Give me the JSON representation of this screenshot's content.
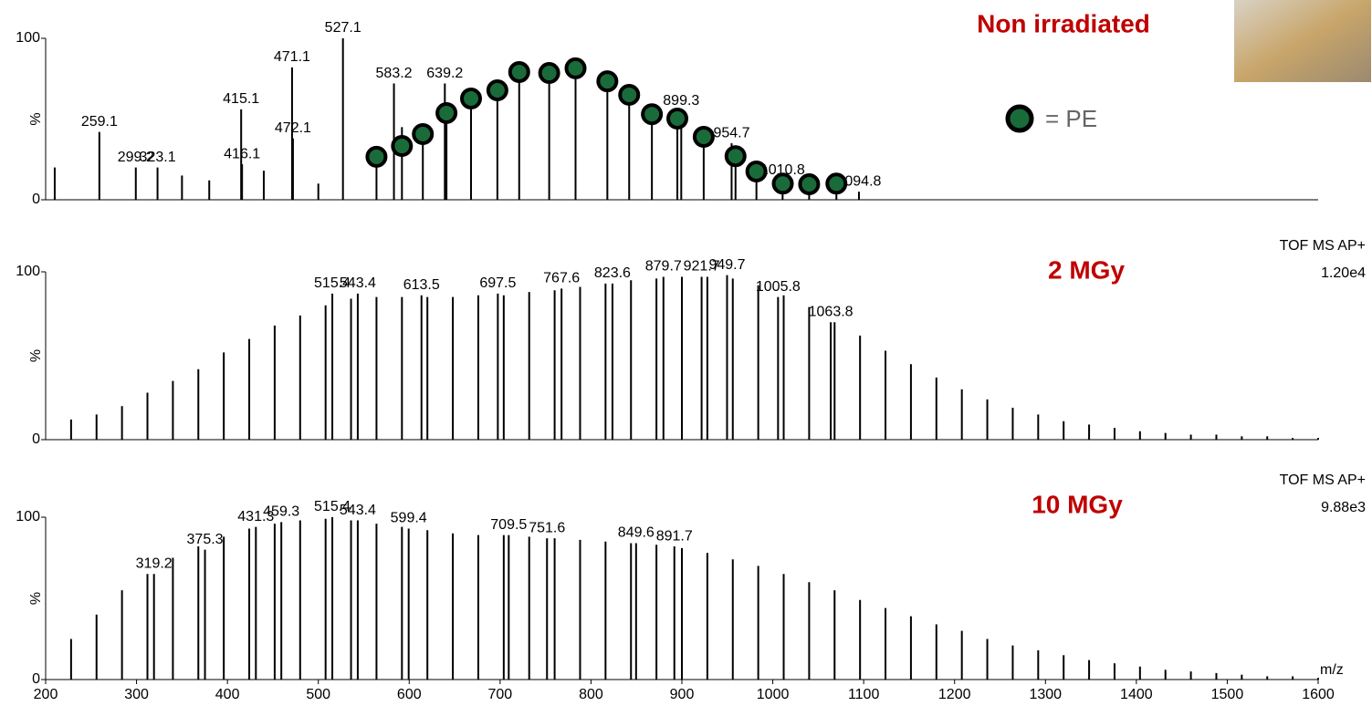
{
  "chart_data": [
    {
      "type": "stem",
      "title": "Non irradiated",
      "title_color": "#c00000",
      "ylabel": "%",
      "xlim": [
        200,
        1600
      ],
      "ylim": [
        0,
        100
      ],
      "yticks": [
        0,
        100
      ],
      "peaks": {
        "x": [
          210,
          350,
          380,
          440,
          500,
          564,
          592,
          615,
          641,
          668,
          697,
          721,
          754,
          783,
          818,
          842,
          867,
          895,
          924,
          959,
          982,
          1040,
          1070
        ],
        "values": [
          20,
          15,
          12,
          18,
          10,
          30,
          45,
          38,
          55,
          63,
          70,
          81,
          80,
          83,
          75,
          67,
          56,
          52,
          42,
          28,
          18,
          10,
          10
        ]
      },
      "labeled_peaks": {
        "x": [
          259.1,
          299.2,
          323.1,
          415.1,
          416.1,
          471.1,
          472.1,
          527.1,
          583.2,
          639.2,
          899.3,
          954.7,
          1010.8,
          1094.8
        ],
        "values": [
          42,
          20,
          20,
          56,
          22,
          82,
          38,
          100,
          72,
          72,
          55,
          35,
          12,
          5
        ]
      },
      "pe_markers": {
        "color": "#1a6b3a",
        "x": [
          564,
          592,
          615,
          641,
          668,
          697,
          721,
          754,
          783,
          818,
          842,
          867,
          895,
          924,
          959,
          982,
          1011,
          1040,
          1070
        ],
        "values": [
          26.6,
          33.3,
          40.7,
          53.7,
          62.7,
          67.8,
          79.1,
          78.5,
          81.4,
          73.4,
          65,
          53,
          50.3,
          39,
          27,
          17.5,
          10,
          9.6,
          10
        ]
      },
      "legend_label": "= PE"
    },
    {
      "type": "stem",
      "title": "2 MGy",
      "title_color": "#c00000",
      "ylabel": "%",
      "annotations": [
        "TOF MS AP+",
        "1.20e4"
      ],
      "xlim": [
        200,
        1600
      ],
      "ylim": [
        0,
        100
      ],
      "yticks": [
        0,
        100
      ],
      "peaks": {
        "x": [
          228,
          256,
          284,
          312,
          340,
          368,
          396,
          424,
          452,
          480,
          508,
          536,
          564,
          592,
          620,
          648,
          676,
          704,
          732,
          760,
          788,
          816,
          844,
          872,
          900,
          928,
          956,
          984,
          1012,
          1040,
          1068,
          1096,
          1124,
          1152,
          1180,
          1208,
          1236,
          1264,
          1292,
          1320,
          1348,
          1376,
          1404,
          1432,
          1460,
          1488,
          1516,
          1544,
          1572,
          1600
        ],
        "values": [
          12,
          15,
          20,
          28,
          35,
          42,
          52,
          60,
          68,
          74,
          80,
          84,
          85,
          85,
          85,
          85,
          86,
          86,
          88,
          89,
          91,
          93,
          95,
          96,
          97,
          97,
          96,
          92,
          86,
          79,
          70,
          62,
          53,
          45,
          37,
          30,
          24,
          19,
          15,
          11,
          9,
          7,
          5,
          4,
          3,
          3,
          2,
          2,
          1,
          1
        ]
      },
      "labeled_peaks": {
        "x": [
          515.4,
          543.4,
          613.5,
          697.5,
          767.6,
          823.6,
          879.7,
          921.7,
          949.7,
          1005.8,
          1063.8
        ],
        "values": [
          87,
          87,
          86,
          87,
          90,
          93,
          97,
          97,
          98,
          85,
          70
        ]
      }
    },
    {
      "type": "stem",
      "title": "10 MGy",
      "title_color": "#c00000",
      "ylabel": "%",
      "annotations": [
        "TOF MS AP+",
        "9.88e3"
      ],
      "xlim": [
        200,
        1600
      ],
      "ylim": [
        0,
        100
      ],
      "yticks": [
        0,
        100
      ],
      "xticks": [
        200,
        300,
        400,
        500,
        600,
        700,
        800,
        900,
        1000,
        1100,
        1200,
        1300,
        1400,
        1500,
        1600
      ],
      "xlabel": "m/z",
      "peaks": {
        "x": [
          228,
          256,
          284,
          312,
          340,
          368,
          396,
          424,
          452,
          480,
          508,
          536,
          564,
          592,
          620,
          648,
          676,
          704,
          732,
          760,
          788,
          816,
          844,
          872,
          900,
          928,
          956,
          984,
          1012,
          1040,
          1068,
          1096,
          1124,
          1152,
          1180,
          1208,
          1236,
          1264,
          1292,
          1320,
          1348,
          1376,
          1404,
          1432,
          1460,
          1488,
          1516,
          1544,
          1572,
          1600
        ],
        "values": [
          25,
          40,
          55,
          65,
          75,
          82,
          88,
          93,
          96,
          98,
          99,
          98,
          96,
          94,
          92,
          90,
          89,
          89,
          88,
          87,
          86,
          85,
          84,
          83,
          81,
          78,
          74,
          70,
          65,
          60,
          55,
          49,
          44,
          39,
          34,
          30,
          25,
          21,
          18,
          15,
          12,
          10,
          8,
          6,
          5,
          4,
          3,
          2,
          2,
          1
        ]
      },
      "labeled_peaks": {
        "x": [
          319.2,
          375.3,
          431.3,
          459.3,
          515.4,
          543.4,
          599.4,
          709.5,
          751.6,
          849.6,
          891.7
        ],
        "values": [
          65,
          80,
          94,
          97,
          100,
          98,
          93,
          89,
          87,
          84,
          82
        ]
      }
    }
  ]
}
